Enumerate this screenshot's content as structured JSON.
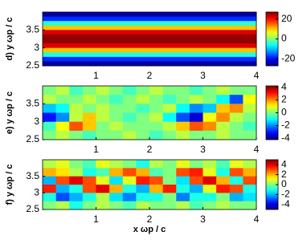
{
  "chart_data": [
    {
      "type": "heatmap",
      "colormap": "jet",
      "y_label": "d) y ωp / c",
      "xlim": [
        0,
        4
      ],
      "xticks": [
        1,
        2,
        3,
        4
      ],
      "ylim": [
        2.5,
        4.0
      ],
      "yticks": [
        3.5,
        3,
        2.5
      ],
      "colorbar_lim": [
        -27,
        27
      ],
      "colorbar_ticks": [
        20,
        0,
        -20
      ],
      "values": [
        [
          -25
        ],
        [
          -18
        ],
        [
          -5
        ],
        [
          10
        ],
        [
          22
        ],
        [
          26
        ],
        [
          26
        ],
        [
          22
        ],
        [
          10
        ],
        [
          -5
        ],
        [
          -18
        ],
        [
          -25
        ]
      ]
    },
    {
      "type": "heatmap",
      "colormap": "jet",
      "y_label": "e) y ωp / c",
      "xlim": [
        0,
        4
      ],
      "xticks": [
        1,
        2,
        3,
        4
      ],
      "ylim": [
        2.5,
        4.0
      ],
      "yticks": [
        3.5,
        3,
        2.5
      ],
      "colorbar_lim": [
        -4.2,
        4.2
      ],
      "colorbar_ticks": [
        4,
        2,
        0,
        -2,
        -4
      ],
      "values": [
        [
          0,
          0.5,
          -0.5,
          0,
          0.5,
          0,
          -0.5,
          0,
          0.5,
          0,
          0,
          -0.5,
          0,
          0.5,
          0,
          0
        ],
        [
          0.5,
          0,
          0,
          0.5,
          0,
          -0.5,
          0,
          0.5,
          0,
          -0.5,
          0,
          0.5,
          0,
          -1,
          -2.5,
          1
        ],
        [
          -1.5,
          -1,
          0.5,
          0,
          0.5,
          0,
          0,
          -0.5,
          0,
          0.5,
          -1,
          -2,
          -1.5,
          1.5,
          2,
          0.5
        ],
        [
          -3,
          -2,
          0.5,
          1.5,
          0.5,
          0,
          -0.5,
          0,
          0.5,
          -1,
          -2.5,
          -3.5,
          1,
          2,
          0.5,
          0
        ],
        [
          -0.5,
          1,
          2.5,
          1.5,
          0,
          0.5,
          0,
          0,
          0,
          0.5,
          1.5,
          2.5,
          2,
          0.5,
          0,
          -0.5
        ],
        [
          0,
          0.5,
          0,
          -0.5,
          0,
          0,
          0.5,
          0,
          -0.5,
          0,
          0.5,
          0,
          0,
          0.5,
          0,
          0
        ]
      ]
    },
    {
      "type": "heatmap",
      "colormap": "jet",
      "y_label": "f) y ωp / c",
      "x_label": "x ωp / c",
      "xlim": [
        0,
        4
      ],
      "xticks": [
        1,
        2,
        3,
        4
      ],
      "ylim": [
        2.5,
        4.0
      ],
      "yticks": [
        3.5,
        3,
        2.5
      ],
      "colorbar_lim": [
        -5,
        5
      ],
      "colorbar_ticks": [
        4,
        2,
        0,
        -2,
        -4
      ],
      "values": [
        [
          0.5,
          1,
          0,
          -0.5,
          1,
          0.5,
          0,
          -1,
          0.5,
          0,
          1,
          0,
          0.5,
          -0.5,
          1,
          0.5
        ],
        [
          2,
          1.5,
          0.5,
          -1,
          -0.5,
          2,
          3,
          2,
          -0.5,
          0,
          3,
          3.5,
          1,
          -1,
          3,
          2
        ],
        [
          -2,
          3,
          4,
          3,
          1,
          -1.5,
          1,
          3.5,
          3,
          0,
          -1.5,
          3,
          4,
          2,
          -1,
          3
        ],
        [
          3.5,
          -2,
          -1,
          3,
          4,
          2,
          -1,
          -2,
          2,
          3.5,
          -1,
          -2,
          1,
          3.5,
          3,
          -1
        ],
        [
          -1,
          -3,
          -2,
          -1,
          0.5,
          -1.5,
          -2.5,
          -1,
          -1,
          0,
          -2.5,
          -1,
          -1,
          0,
          -2,
          -1.5
        ],
        [
          0,
          0.5,
          -1,
          0,
          0.5,
          0,
          -0.5,
          0.5,
          0,
          0,
          0.5,
          -0.5,
          0,
          0.5,
          0,
          0
        ]
      ]
    }
  ]
}
